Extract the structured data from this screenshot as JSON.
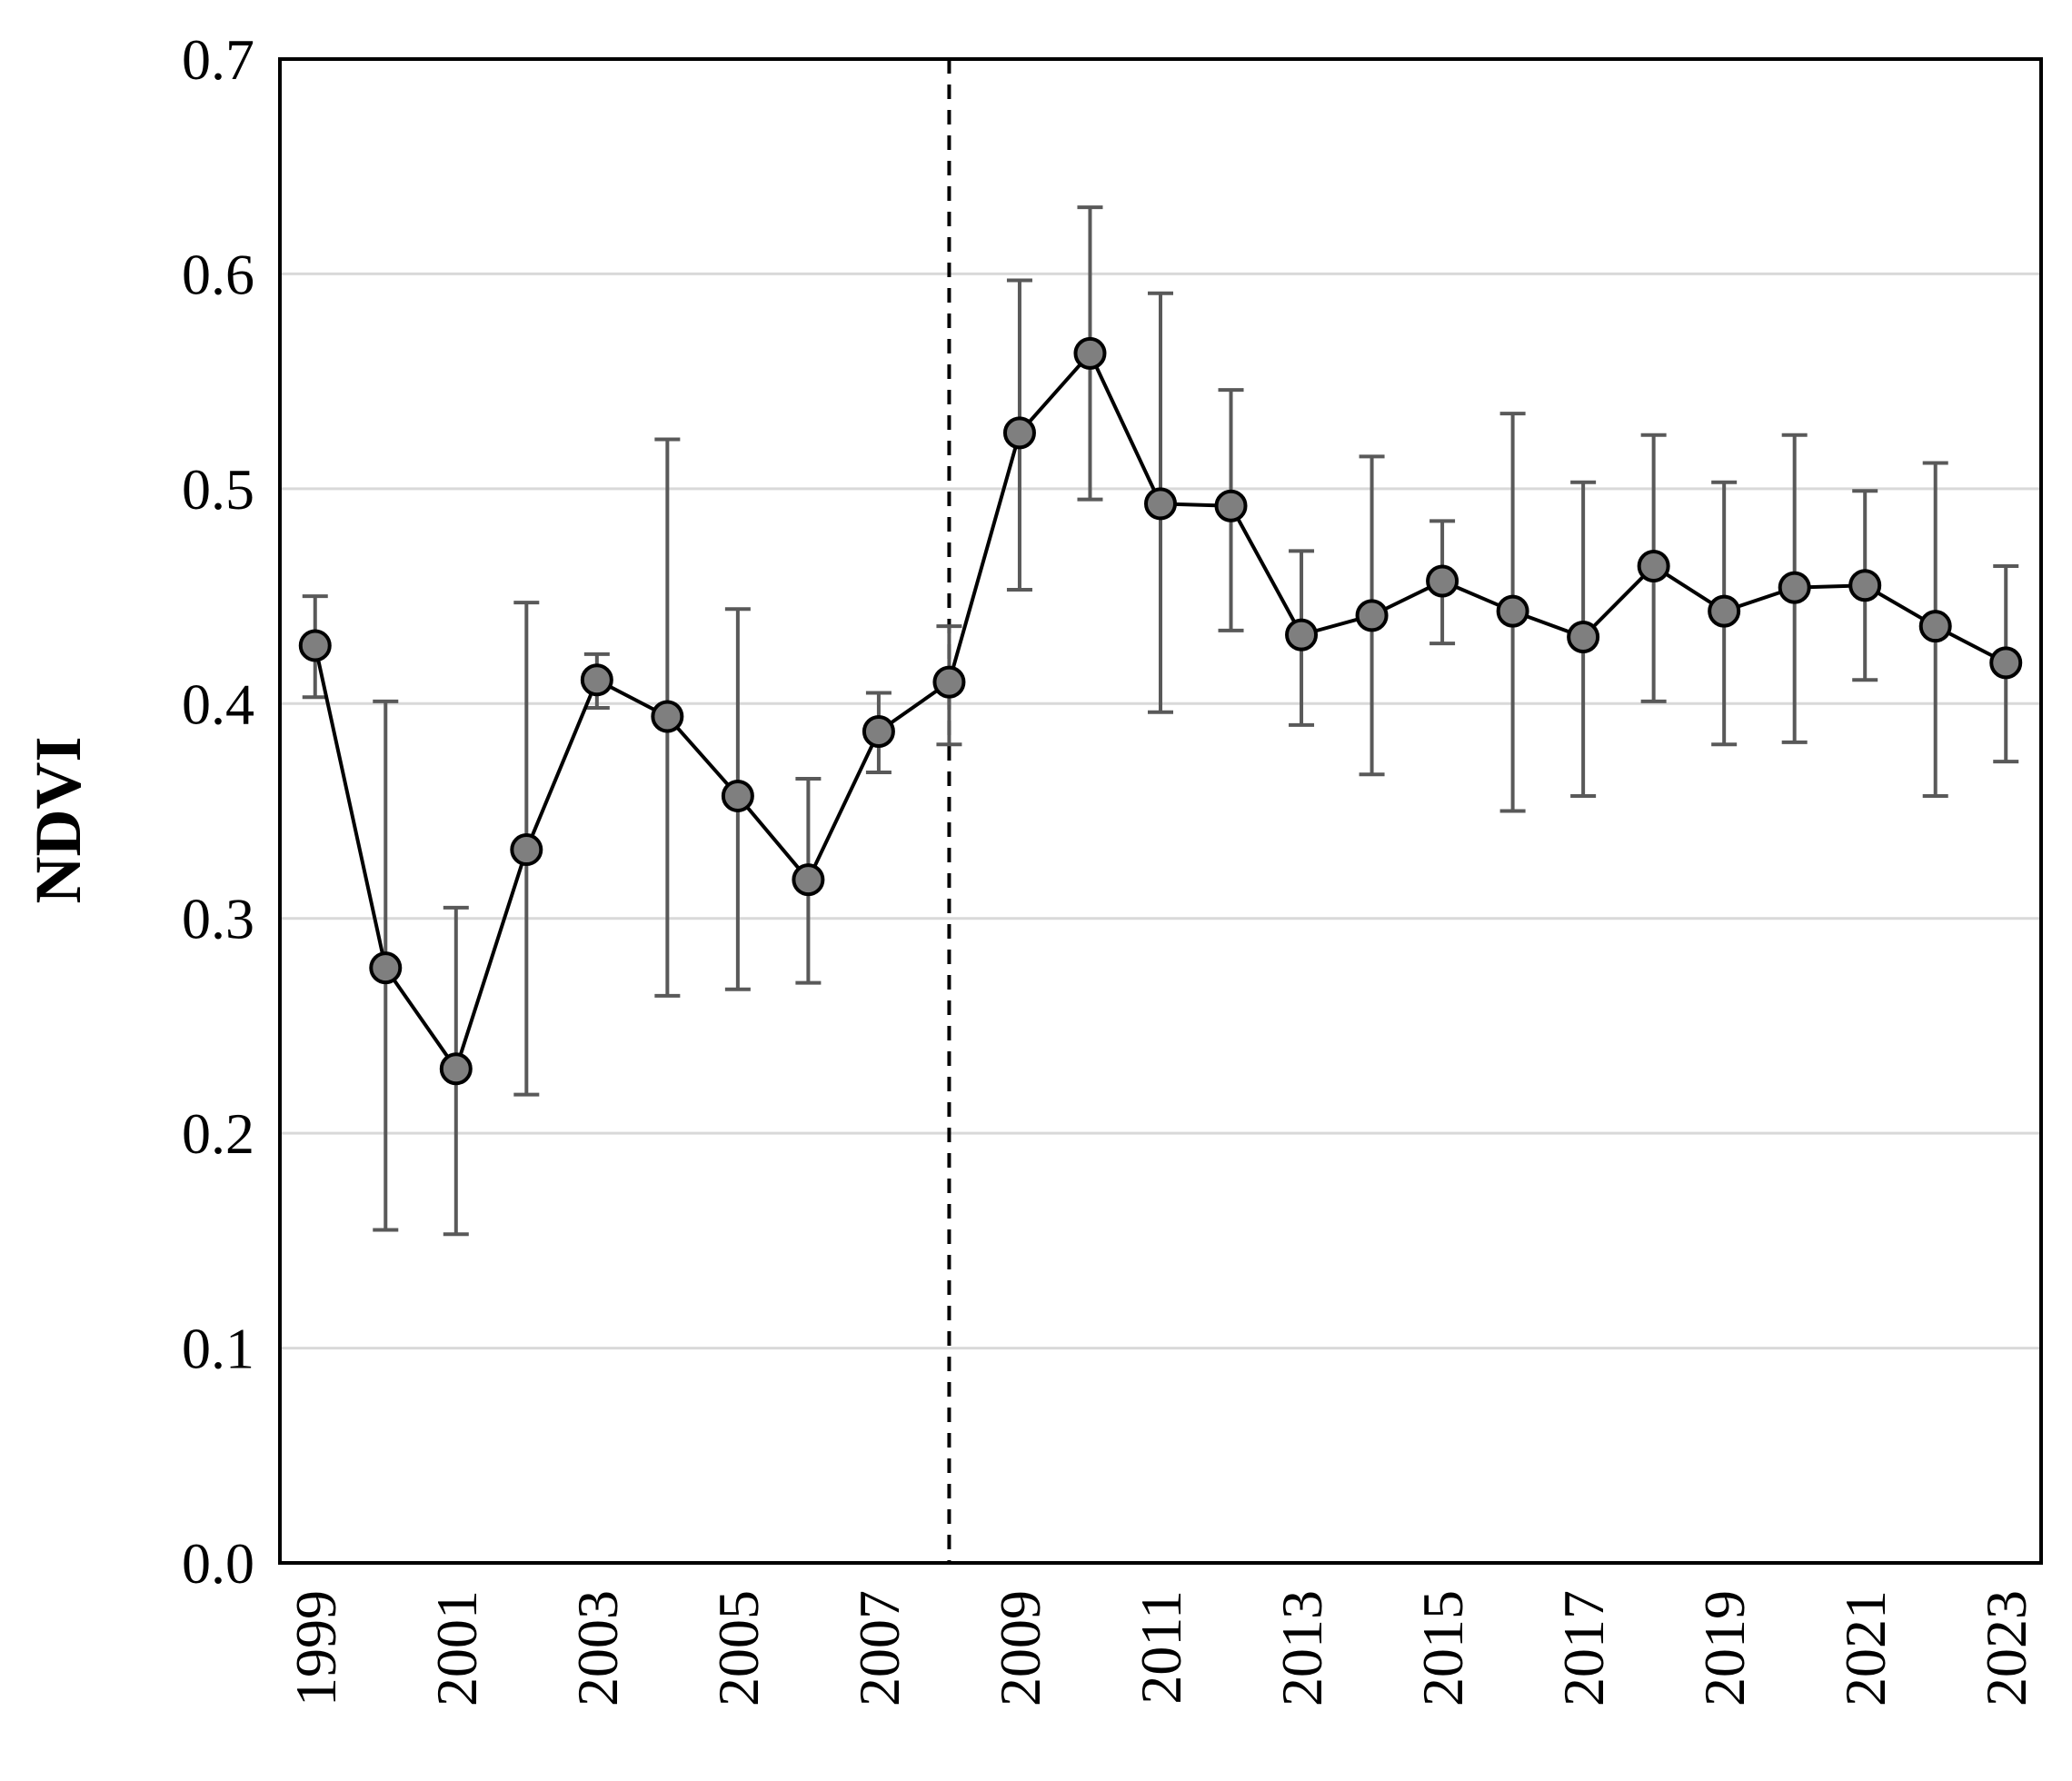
{
  "chart_data": {
    "type": "line",
    "title": "",
    "xlabel": "",
    "ylabel": "NDVI",
    "ylim": [
      0,
      0.7
    ],
    "yticks": [
      "0.0",
      "0.1",
      "0.2",
      "0.3",
      "0.4",
      "0.5",
      "0.6",
      "0.7"
    ],
    "x": [
      1999,
      2000,
      2001,
      2002,
      2003,
      2004,
      2005,
      2006,
      2007,
      2008,
      2009,
      2010,
      2011,
      2012,
      2013,
      2014,
      2015,
      2016,
      2017,
      2018,
      2019,
      2020,
      2021,
      2022,
      2023
    ],
    "xtick_labels": [
      "1999",
      "2001",
      "2003",
      "2005",
      "2007",
      "2009",
      "2011",
      "2013",
      "2015",
      "2017",
      "2019",
      "2021",
      "2023"
    ],
    "series": [
      {
        "values": [
          0.427,
          0.277,
          0.23,
          0.332,
          0.411,
          0.394,
          0.357,
          0.318,
          0.387,
          0.41,
          0.526,
          0.563,
          0.493,
          0.492,
          0.432,
          0.441,
          0.457,
          0.443,
          0.431,
          0.464,
          0.443,
          0.454,
          0.455,
          0.436,
          0.419
        ],
        "error_low": [
          0.403,
          0.155,
          0.153,
          0.218,
          0.398,
          0.264,
          0.267,
          0.27,
          0.368,
          0.381,
          0.453,
          0.495,
          0.396,
          0.434,
          0.39,
          0.367,
          0.428,
          0.35,
          0.357,
          0.401,
          0.381,
          0.382,
          0.411,
          0.357,
          0.373
        ],
        "error_high": [
          0.45,
          0.401,
          0.305,
          0.447,
          0.423,
          0.523,
          0.444,
          0.365,
          0.405,
          0.436,
          0.597,
          0.631,
          0.591,
          0.546,
          0.471,
          0.515,
          0.485,
          0.535,
          0.503,
          0.525,
          0.503,
          0.525,
          0.499,
          0.512,
          0.464
        ]
      }
    ],
    "reference_line_x": 2008,
    "grid": true,
    "colors": {
      "line": "#000000",
      "marker_fill": "#7f7f7f",
      "marker_stroke": "#000000",
      "error_bar": "#595959",
      "grid": "#d9d9d9",
      "frame": "#000000"
    }
  }
}
